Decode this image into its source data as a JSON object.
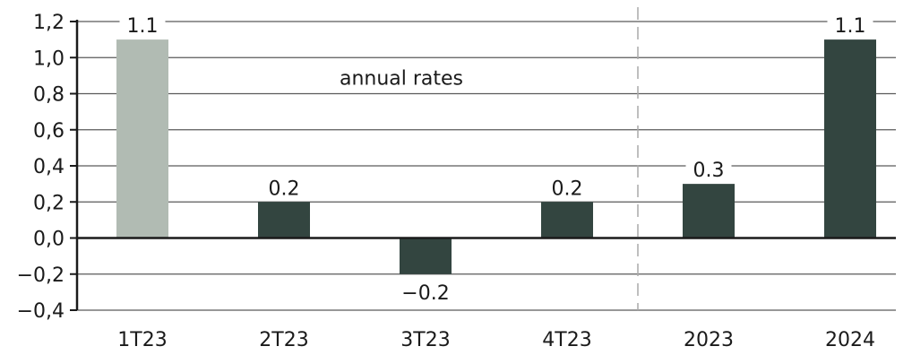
{
  "chart_data": {
    "type": "bar",
    "categories": [
      "1T23",
      "2T23",
      "3T23",
      "4T23",
      "2023",
      "2024"
    ],
    "values": [
      1.1,
      0.2,
      -0.2,
      0.2,
      0.3,
      1.1
    ],
    "value_labels": [
      "1.1",
      "0.2",
      "−0.2",
      "0.2",
      "0.3",
      "1.1"
    ],
    "bar_colors": [
      "#b1bbb3",
      "#334540",
      "#334540",
      "#334540",
      "#334540",
      "#334540"
    ],
    "ylim": [
      -0.4,
      1.2
    ],
    "yticks": [
      1.2,
      1.0,
      0.8,
      0.6,
      0.4,
      0.2,
      0.0,
      -0.2,
      -0.4
    ],
    "ytick_labels": [
      "1,2",
      "1,0",
      "0,8",
      "0,6",
      "0,4",
      "0,2",
      "0,0",
      "−0,2",
      "−0,4"
    ],
    "annotation": "annual rates",
    "grid": true,
    "separator_after_category": 3
  }
}
